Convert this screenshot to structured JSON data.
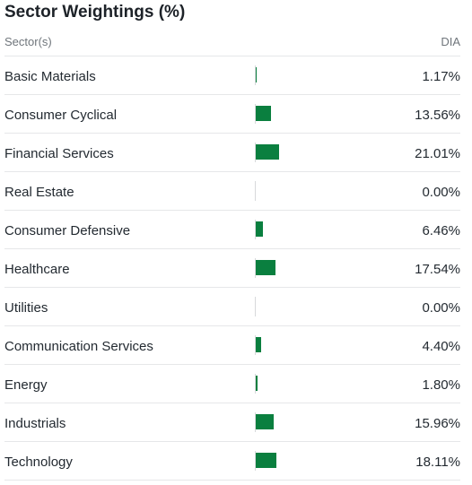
{
  "title": "Sector Weightings (%)",
  "header": {
    "sector_label": "Sector(s)",
    "fund_label": "DIA"
  },
  "colors": {
    "bar": "#0a7f3f"
  },
  "sectors": [
    {
      "name": "Basic Materials",
      "value": "1.17%",
      "weight": 1.17
    },
    {
      "name": "Consumer Cyclical",
      "value": "13.56%",
      "weight": 13.56
    },
    {
      "name": "Financial Services",
      "value": "21.01%",
      "weight": 21.01
    },
    {
      "name": "Real Estate",
      "value": "0.00%",
      "weight": 0.0
    },
    {
      "name": "Consumer Defensive",
      "value": "6.46%",
      "weight": 6.46
    },
    {
      "name": "Healthcare",
      "value": "17.54%",
      "weight": 17.54
    },
    {
      "name": "Utilities",
      "value": "0.00%",
      "weight": 0.0
    },
    {
      "name": "Communication Services",
      "value": "4.40%",
      "weight": 4.4
    },
    {
      "name": "Energy",
      "value": "1.80%",
      "weight": 1.8
    },
    {
      "name": "Industrials",
      "value": "15.96%",
      "weight": 15.96
    },
    {
      "name": "Technology",
      "value": "18.11%",
      "weight": 18.11
    }
  ]
}
